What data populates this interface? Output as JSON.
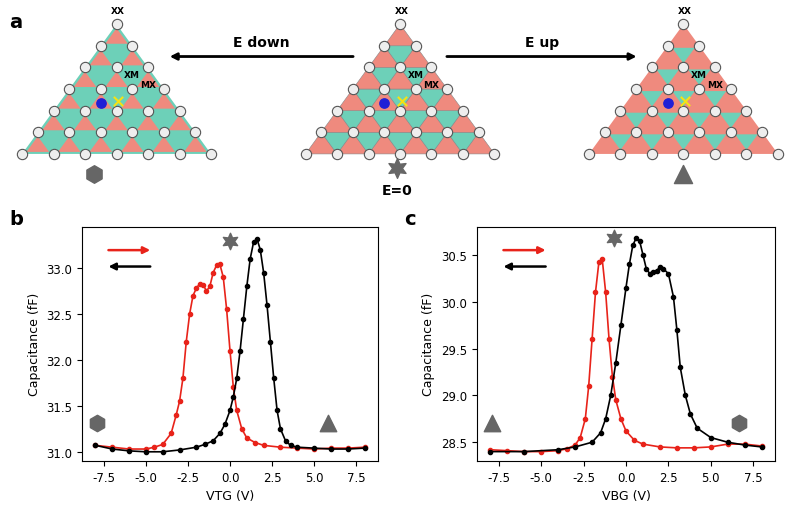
{
  "diagram": {
    "panel_label": "a",
    "arrows": [
      "E down",
      "E up"
    ],
    "field_label": "E=0",
    "site_labels": [
      "XX",
      "XM",
      "MX"
    ]
  },
  "chart_data": [
    {
      "panel_label": "b",
      "type": "line",
      "x_label": "VTG (V)",
      "y_label": "Capacitance (fF)",
      "xlim": [
        -8.8,
        8.8
      ],
      "xticks": [
        {
          "value": -7.5,
          "label": "-7.5"
        },
        {
          "value": -5.0,
          "label": "-5.0"
        },
        {
          "value": -2.5,
          "label": "-2.5"
        },
        {
          "value": 0.0,
          "label": "0.0"
        },
        {
          "value": 2.5,
          "label": "2.5"
        },
        {
          "value": 5.0,
          "label": "5.0"
        },
        {
          "value": 7.5,
          "label": "7.5"
        }
      ],
      "ylim": [
        30.9,
        33.45
      ],
      "yticks": [
        {
          "value": 31.0,
          "label": "31.0"
        },
        {
          "value": 31.5,
          "label": "31.5"
        },
        {
          "value": 32.0,
          "label": "32.0"
        },
        {
          "value": 32.5,
          "label": "32.5"
        },
        {
          "value": 33.0,
          "label": "33.0"
        }
      ],
      "series": [
        {
          "color": "#e8231a",
          "marker": "o",
          "line_style": "solid",
          "x": [
            -8,
            -7,
            -6,
            -5,
            -4.5,
            -4,
            -3.5,
            -3.2,
            -3,
            -2.8,
            -2.6,
            -2.4,
            -2.2,
            -2,
            -1.8,
            -1.6,
            -1.4,
            -1.2,
            -1,
            -0.8,
            -0.6,
            -0.4,
            -0.2,
            0,
            0.2,
            0.4,
            0.7,
            1,
            1.5,
            2,
            3,
            4,
            5,
            6,
            7,
            8
          ],
          "values": [
            31.07,
            31.05,
            31.03,
            31.03,
            31.05,
            31.08,
            31.2,
            31.4,
            31.55,
            31.8,
            32.2,
            32.5,
            32.7,
            32.78,
            32.83,
            32.82,
            32.75,
            32.8,
            32.95,
            33.03,
            33.04,
            32.9,
            32.55,
            32.1,
            31.7,
            31.45,
            31.25,
            31.15,
            31.1,
            31.07,
            31.05,
            31.04,
            31.03,
            31.04,
            31.04,
            31.05
          ]
        },
        {
          "color": "#000000",
          "marker": "o",
          "line_style": "solid",
          "x": [
            -8,
            -7,
            -6,
            -5,
            -4,
            -3,
            -2,
            -1.5,
            -1,
            -0.6,
            -0.3,
            0,
            0.2,
            0.4,
            0.6,
            0.8,
            1,
            1.2,
            1.4,
            1.6,
            1.8,
            2,
            2.2,
            2.4,
            2.6,
            2.8,
            3,
            3.3,
            3.6,
            4,
            5,
            6,
            7,
            8
          ],
          "values": [
            31.07,
            31.03,
            31.01,
            31.0,
            31.0,
            31.02,
            31.05,
            31.08,
            31.12,
            31.2,
            31.3,
            31.45,
            31.6,
            31.8,
            32.1,
            32.45,
            32.8,
            33.1,
            33.28,
            33.32,
            33.2,
            32.95,
            32.6,
            32.2,
            31.8,
            31.45,
            31.25,
            31.12,
            31.07,
            31.05,
            31.04,
            31.03,
            31.03,
            31.04
          ]
        }
      ]
    },
    {
      "panel_label": "c",
      "type": "line",
      "x_label": "VBG (V)",
      "y_label": "Capacitance (fF)",
      "xlim": [
        -8.8,
        8.8
      ],
      "xticks": [
        {
          "value": -7.5,
          "label": "-7.5"
        },
        {
          "value": -5.0,
          "label": "-5.0"
        },
        {
          "value": -2.5,
          "label": "-2.5"
        },
        {
          "value": 0.0,
          "label": "0.0"
        },
        {
          "value": 2.5,
          "label": "2.5"
        },
        {
          "value": 5.0,
          "label": "5.0"
        },
        {
          "value": 7.5,
          "label": "7.5"
        }
      ],
      "ylim": [
        28.3,
        30.8
      ],
      "yticks": [
        {
          "value": 28.5,
          "label": "28.5"
        },
        {
          "value": 29.0,
          "label": "29.0"
        },
        {
          "value": 29.5,
          "label": "29.5"
        },
        {
          "value": 30.0,
          "label": "30.0"
        },
        {
          "value": 30.5,
          "label": "30.5"
        }
      ],
      "series": [
        {
          "color": "#e8231a",
          "marker": "o",
          "line_style": "solid",
          "x": [
            -8,
            -7,
            -6,
            -5,
            -4,
            -3.5,
            -3,
            -2.7,
            -2.4,
            -2.2,
            -2,
            -1.8,
            -1.6,
            -1.4,
            -1.2,
            -1,
            -0.8,
            -0.6,
            -0.3,
            0,
            0.5,
            1,
            2,
            3,
            4,
            5,
            6,
            7,
            8
          ],
          "values": [
            28.42,
            28.41,
            28.4,
            28.4,
            28.41,
            28.43,
            28.47,
            28.55,
            28.75,
            29.1,
            29.6,
            30.1,
            30.42,
            30.45,
            30.1,
            29.6,
            29.2,
            28.95,
            28.75,
            28.62,
            28.52,
            28.48,
            28.45,
            28.44,
            28.44,
            28.45,
            28.48,
            28.48,
            28.46
          ]
        },
        {
          "color": "#000000",
          "marker": "o",
          "line_style": "solid",
          "x": [
            -8,
            -6,
            -4,
            -3,
            -2,
            -1.5,
            -1.2,
            -0.9,
            -0.6,
            -0.3,
            0,
            0.2,
            0.4,
            0.6,
            0.8,
            1,
            1.2,
            1.4,
            1.6,
            1.8,
            2,
            2.2,
            2.5,
            2.8,
            3,
            3.2,
            3.5,
            3.8,
            4.2,
            5,
            6,
            7,
            8
          ],
          "values": [
            28.4,
            28.4,
            28.42,
            28.45,
            28.5,
            28.6,
            28.75,
            29.0,
            29.35,
            29.75,
            30.15,
            30.4,
            30.6,
            30.68,
            30.65,
            30.5,
            30.35,
            30.3,
            30.32,
            30.33,
            30.37,
            30.35,
            30.3,
            30.05,
            29.7,
            29.3,
            29.0,
            28.8,
            28.65,
            28.55,
            28.5,
            28.47,
            28.45
          ]
        }
      ]
    }
  ]
}
